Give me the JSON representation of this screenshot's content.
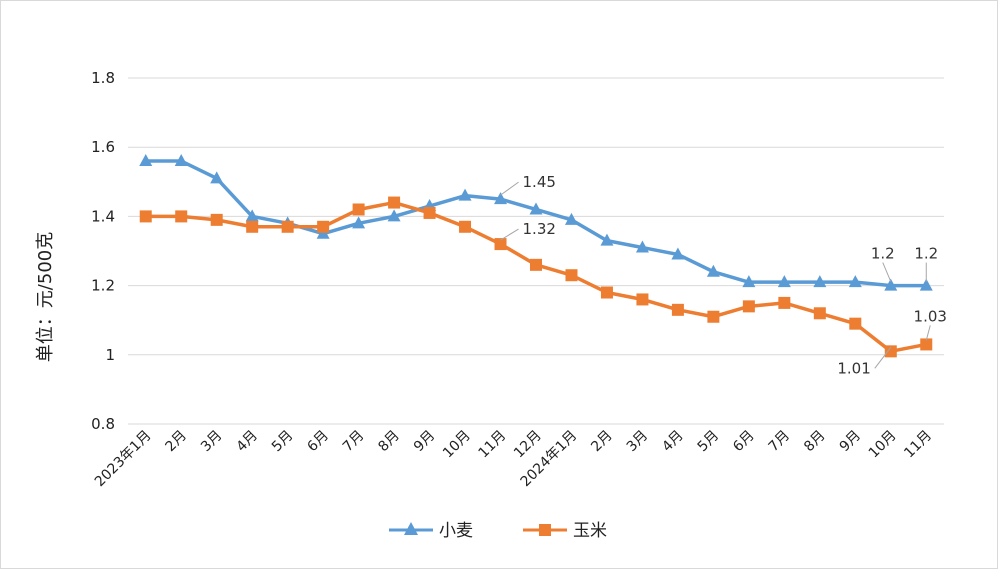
{
  "chart_data": {
    "type": "line",
    "title": "",
    "xlabel": "",
    "ylabel": "单位：元/500克",
    "ylim": [
      0.8,
      1.8
    ],
    "yticks": [
      0.8,
      1,
      1.2,
      1.4,
      1.6,
      1.8
    ],
    "ytick_labels": [
      "0.8",
      "1",
      "1.2",
      "1.4",
      "1.6",
      "1.8"
    ],
    "grid": true,
    "legend_position": "bottom",
    "categories": [
      "2023年1月",
      "2月",
      "3月",
      "4月",
      "5月",
      "6月",
      "7月",
      "8月",
      "9月",
      "10月",
      "11月",
      "12月",
      "2024年1月",
      "2月",
      "3月",
      "4月",
      "5月",
      "6月",
      "7月",
      "8月",
      "9月",
      "10月",
      "11月"
    ],
    "series": [
      {
        "name": "小麦",
        "color": "#5B9BD5",
        "marker": "triangle",
        "values": [
          1.56,
          1.56,
          1.51,
          1.4,
          1.38,
          1.35,
          1.38,
          1.4,
          1.43,
          1.46,
          1.45,
          1.42,
          1.39,
          1.33,
          1.31,
          1.29,
          1.24,
          1.21,
          1.21,
          1.21,
          1.21,
          1.2,
          1.2
        ],
        "labels": [
          {
            "index": 10,
            "text": "1.45"
          },
          {
            "index": 21,
            "text": "1.2"
          },
          {
            "index": 22,
            "text": "1.2"
          }
        ]
      },
      {
        "name": "玉米",
        "color": "#ED7D31",
        "marker": "square",
        "values": [
          1.4,
          1.4,
          1.39,
          1.37,
          1.37,
          1.37,
          1.42,
          1.44,
          1.41,
          1.37,
          1.32,
          1.26,
          1.23,
          1.18,
          1.16,
          1.13,
          1.11,
          1.14,
          1.15,
          1.12,
          1.09,
          1.01,
          1.03
        ],
        "labels": [
          {
            "index": 10,
            "text": "1.32"
          },
          {
            "index": 21,
            "text": "1.01"
          },
          {
            "index": 22,
            "text": "1.03"
          }
        ]
      }
    ]
  }
}
